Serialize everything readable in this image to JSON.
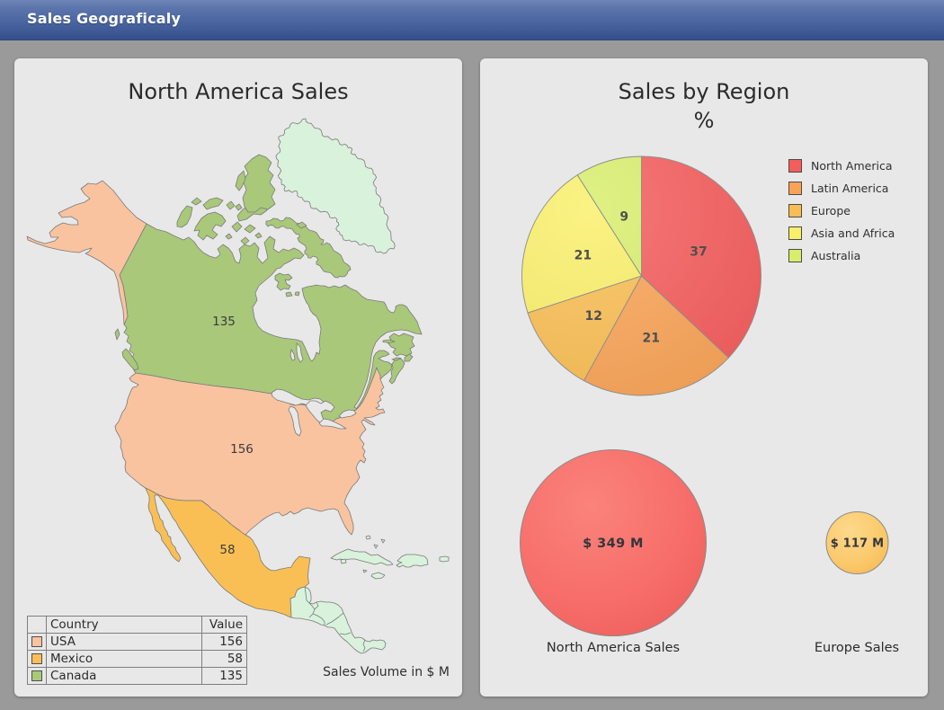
{
  "window": {
    "title": "Sales Geograficaly"
  },
  "colors": {
    "titlebar_top": "#6880b4",
    "titlebar_bottom": "#3b5590",
    "page_background": "#9a9a9a",
    "panel_background": "#e8e8e8",
    "canada": "#a9c87a",
    "usa": "#f9c3a0",
    "mexico": "#f9bf55",
    "other_land": "#d9f2dc",
    "outline": "#7a7a7a",
    "text": "#303030"
  },
  "left_panel": {
    "title": "North America Sales",
    "note": "Sales Volume in $ M",
    "map_labels": {
      "canada": "135",
      "usa": "156",
      "mexico": "58"
    },
    "table": {
      "headers": {
        "swatch": "",
        "country": "Country",
        "value": "Value"
      },
      "rows": [
        {
          "country": "USA",
          "value": "156",
          "color": "#f9c3a0"
        },
        {
          "country": "Mexico",
          "value": "58",
          "color": "#f9bf55"
        },
        {
          "country": "Canada",
          "value": "135",
          "color": "#a9c87a"
        }
      ]
    }
  },
  "right_panel": {
    "title": "Sales by Region",
    "subtitle": "%",
    "bubbles": [
      {
        "label": "$ 349 M",
        "caption": "North America Sales"
      },
      {
        "label": "$ 117 M",
        "caption": "Europe Sales"
      }
    ]
  },
  "chart_data": [
    {
      "type": "pie",
      "title": "Sales by Region",
      "subtitle": "%",
      "unit": "percent",
      "categories": [
        "North America",
        "Latin America",
        "Europe",
        "Asia and Africa",
        "Australia"
      ],
      "values": [
        37,
        21,
        12,
        21,
        9
      ],
      "colors": [
        "#f55c5c",
        "#f9a355",
        "#f9bd52",
        "#f9ef68",
        "#d8ee6a"
      ],
      "legend_position": "right",
      "start_angle_deg": 0,
      "clockwise": true
    },
    {
      "type": "bubble",
      "title": "Sales Volume in $ M",
      "points": [
        {
          "label": "North America Sales",
          "value": 349,
          "display": "$ 349 M",
          "color": "#f3625f"
        },
        {
          "label": "Europe Sales",
          "value": 117,
          "display": "$ 117 M",
          "color": "#f9bf55"
        }
      ]
    },
    {
      "type": "map",
      "title": "North America Sales",
      "note": "Sales Volume in $ M",
      "regions": [
        {
          "name": "USA",
          "value": 156,
          "color": "#f9c3a0"
        },
        {
          "name": "Mexico",
          "value": 58,
          "color": "#f9bf55"
        },
        {
          "name": "Canada",
          "value": 135,
          "color": "#a9c87a"
        },
        {
          "name": "Greenland / Central America / Caribbean",
          "value": null,
          "color": "#d9f2dc"
        }
      ]
    }
  ]
}
